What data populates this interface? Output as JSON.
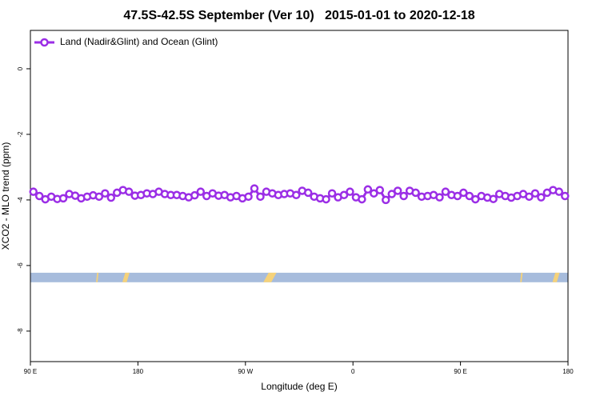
{
  "chart_data": {
    "type": "line",
    "title": "47.5S-42.5S September (Ver 10)   2015-01-01 to 2020-12-18",
    "xlabel": "Longitude (deg E)",
    "ylabel": "XCO2 - MLO trend (ppm)",
    "xlim": [
      90,
      540
    ],
    "xticks": [
      {
        "value": 90,
        "label": "90 E"
      },
      {
        "value": 180,
        "label": "180"
      },
      {
        "value": 270,
        "label": "90 W"
      },
      {
        "value": 360,
        "label": "0"
      },
      {
        "value": 450,
        "label": "90 E"
      },
      {
        "value": 540,
        "label": "180"
      }
    ],
    "ylim": [
      -8.93,
      1.17
    ],
    "yticks": [
      0,
      -2,
      -4,
      -6,
      -8
    ],
    "legend": "top-left",
    "ocean_band": {
      "range": [
        -6.51,
        -6.22
      ],
      "color": "#a7bcdc"
    },
    "land_patches": {
      "color": "#f5d27a",
      "ranges": [
        [
          145,
          147
        ],
        [
          167,
          173
        ],
        [
          285,
          296
        ],
        [
          500,
          502
        ],
        [
          527,
          533
        ]
      ]
    },
    "series": [
      {
        "name": "Land (Nadir&Glint) and Ocean (Glint)",
        "color": "#9b2ee6",
        "x": [
          92.5,
          97.5,
          102.5,
          107.5,
          112.5,
          117.5,
          122.5,
          127.5,
          132.5,
          137.5,
          142.5,
          147.5,
          152.5,
          157.5,
          162.5,
          167.5,
          172.5,
          177.5,
          182.5,
          187.5,
          192.5,
          197.5,
          202.5,
          207.5,
          212.5,
          217.5,
          222.5,
          227.5,
          232.5,
          237.5,
          242.5,
          247.5,
          252.5,
          257.5,
          262.5,
          267.5,
          272.5,
          277.5,
          282.5,
          287.5,
          292.5,
          297.5,
          302.5,
          307.5,
          312.5,
          317.5,
          322.5,
          327.5,
          332.5,
          337.5,
          342.5,
          347.5,
          352.5,
          357.5,
          362.5,
          367.5,
          372.5,
          377.5,
          382.5,
          387.5,
          392.5,
          397.5,
          402.5,
          407.5,
          412.5,
          417.5,
          422.5,
          427.5,
          432.5,
          437.5,
          442.5,
          447.5,
          452.5,
          457.5,
          462.5,
          467.5,
          472.5,
          477.5,
          482.5,
          487.5,
          492.5,
          497.5,
          502.5,
          507.5,
          512.5,
          517.5,
          522.5,
          527.5,
          532.5,
          537.5
        ],
        "values": [
          -3.75,
          -3.88,
          -3.98,
          -3.9,
          -3.97,
          -3.95,
          -3.82,
          -3.87,
          -3.95,
          -3.9,
          -3.86,
          -3.9,
          -3.8,
          -3.93,
          -3.78,
          -3.7,
          -3.75,
          -3.87,
          -3.85,
          -3.8,
          -3.82,
          -3.75,
          -3.82,
          -3.85,
          -3.85,
          -3.88,
          -3.92,
          -3.86,
          -3.75,
          -3.88,
          -3.8,
          -3.87,
          -3.85,
          -3.92,
          -3.88,
          -3.95,
          -3.9,
          -3.65,
          -3.9,
          -3.75,
          -3.8,
          -3.85,
          -3.82,
          -3.8,
          -3.85,
          -3.72,
          -3.78,
          -3.9,
          -3.95,
          -3.98,
          -3.8,
          -3.92,
          -3.85,
          -3.75,
          -3.92,
          -3.98,
          -3.68,
          -3.8,
          -3.7,
          -4.0,
          -3.82,
          -3.72,
          -3.88,
          -3.72,
          -3.78,
          -3.9,
          -3.88,
          -3.85,
          -3.92,
          -3.75,
          -3.85,
          -3.88,
          -3.78,
          -3.88,
          -3.98,
          -3.88,
          -3.93,
          -3.97,
          -3.82,
          -3.88,
          -3.93,
          -3.88,
          -3.82,
          -3.9,
          -3.8,
          -3.92,
          -3.78,
          -3.7,
          -3.75,
          -3.88
        ]
      }
    ]
  }
}
